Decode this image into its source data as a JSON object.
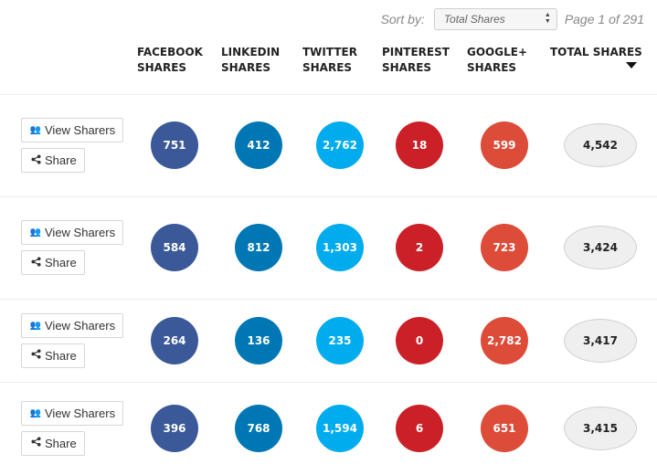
{
  "sort": {
    "label": "Sort by:",
    "selected": "Total Shares",
    "page_info": "Page 1 of 291"
  },
  "headers": {
    "facebook": "FACEBOOK SHARES",
    "linkedin": "LINKEDIN SHARES",
    "twitter": "TWITTER SHARES",
    "pinterest": "PINTEREST SHARES",
    "googleplus": "GOOGLE+ SHARES",
    "total": "TOTAL SHARES"
  },
  "buttons": {
    "view_sharers": "View Sharers",
    "share": "Share"
  },
  "icons": {
    "view_sharers": "users-icon",
    "share": "share-icon",
    "sort": "caret-down-icon"
  },
  "colors": {
    "facebook": "#3b5998",
    "linkedin": "#0077b5",
    "twitter": "#00acee",
    "pinterest": "#cb2027",
    "googleplus": "#dd4b39",
    "total": "#efefef"
  },
  "rows": [
    {
      "facebook": "751",
      "linkedin": "412",
      "twitter": "2,762",
      "pinterest": "18",
      "googleplus": "599",
      "total": "4,542"
    },
    {
      "facebook": "584",
      "linkedin": "812",
      "twitter": "1,303",
      "pinterest": "2",
      "googleplus": "723",
      "total": "3,424"
    },
    {
      "facebook": "264",
      "linkedin": "136",
      "twitter": "235",
      "pinterest": "0",
      "googleplus": "2,782",
      "total": "3,417"
    },
    {
      "facebook": "396",
      "linkedin": "768",
      "twitter": "1,594",
      "pinterest": "6",
      "googleplus": "651",
      "total": "3,415"
    }
  ]
}
